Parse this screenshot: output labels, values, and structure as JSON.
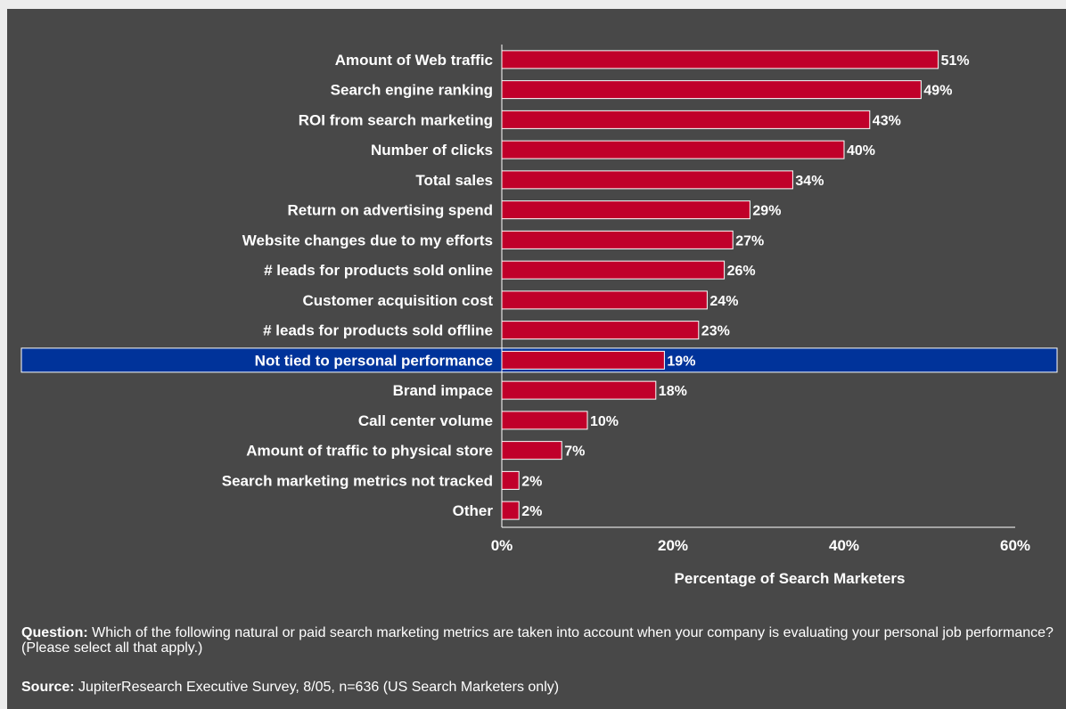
{
  "chart_data": {
    "type": "bar",
    "orientation": "horizontal",
    "categories": [
      "Amount of Web traffic",
      "Search engine ranking",
      "ROI from search marketing",
      "Number of clicks",
      "Total sales",
      "Return on advertising spend",
      "Website changes due to my efforts",
      "# leads for products sold online",
      "Customer acquisition cost",
      "# leads for products sold offline",
      "Not tied to personal performance",
      "Brand impace",
      "Call center volume",
      "Amount of traffic to physical store",
      "Search marketing metrics not tracked",
      "Other"
    ],
    "values": [
      51,
      49,
      43,
      40,
      34,
      29,
      27,
      26,
      24,
      23,
      19,
      18,
      10,
      7,
      2,
      2
    ],
    "value_labels": [
      "51%",
      "49%",
      "43%",
      "40%",
      "34%",
      "29%",
      "27%",
      "26%",
      "24%",
      "23%",
      "19%",
      "18%",
      "10%",
      "7%",
      "2%",
      "2%"
    ],
    "highlighted_category": "Not tied to personal performance",
    "xlabel": "Percentage of Search Marketers",
    "ylabel": "",
    "xlim": [
      0,
      60
    ],
    "xticks": [
      0,
      20,
      40,
      60
    ],
    "xtick_labels": [
      "0%",
      "20%",
      "40%",
      "60%"
    ],
    "grid": false,
    "colors": {
      "bar": "#c0002a",
      "bar_outline": "#ffffff",
      "highlight_band": "#00339a",
      "background": "#484848",
      "text": "#ffffff"
    }
  },
  "footer": {
    "question_label": "Question:",
    "question_text": " Which of the following natural or paid search marketing metrics are taken into account when your company is evaluating your personal job performance? (Please select all that apply.)",
    "source_label": "Source:",
    "source_text": " JupiterResearch Executive Survey, 8/05, n=636 (US Search Marketers only)"
  }
}
